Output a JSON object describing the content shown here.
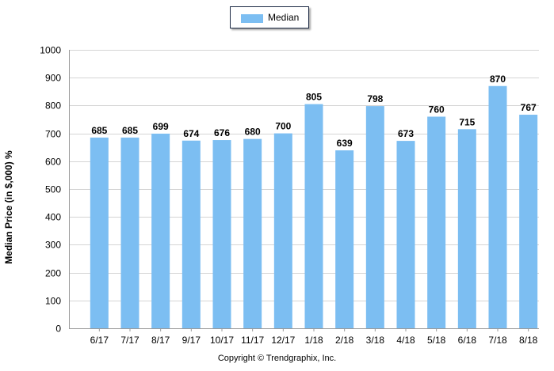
{
  "chart_data": {
    "type": "bar",
    "categories": [
      "6/17",
      "7/17",
      "8/17",
      "9/17",
      "10/17",
      "11/17",
      "12/17",
      "1/18",
      "2/18",
      "3/18",
      "4/18",
      "5/18",
      "6/18",
      "7/18",
      "8/18"
    ],
    "series": [
      {
        "name": "Median",
        "values": [
          685,
          685,
          699,
          674,
          676,
          680,
          700,
          805,
          639,
          798,
          673,
          760,
          715,
          870,
          767
        ]
      }
    ],
    "ylabel": "Median Price (in $,000) %",
    "xlabel": "",
    "ylim": [
      0,
      1000
    ],
    "yticks": [
      0,
      100,
      200,
      300,
      400,
      500,
      600,
      700,
      800,
      900,
      1000
    ],
    "grid": true,
    "legend": "top-center",
    "bar_color": "#7cbef2",
    "copyright": "Copyright © Trendgraphix, Inc."
  }
}
